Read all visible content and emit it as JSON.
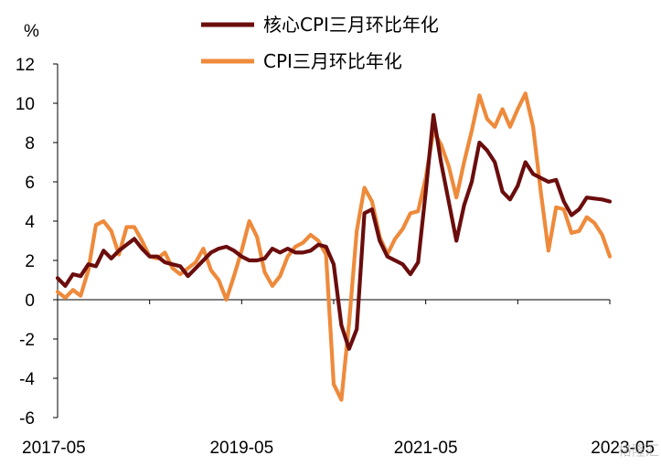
{
  "chart_data": {
    "type": "line",
    "ylabel": "%",
    "ylim": [
      -6,
      12
    ],
    "yticks": [
      -6,
      -4,
      -2,
      0,
      2,
      4,
      6,
      8,
      10,
      12
    ],
    "xlim": [
      "2017-05",
      "2023-05"
    ],
    "xticks": [
      "2017-05",
      "2019-05",
      "2021-05",
      "2023-05"
    ],
    "grid": false,
    "legend_position": "top",
    "series": [
      {
        "name": "核心CPI三月环比年化",
        "color": "#6b0d0d",
        "x": [
          "2017-05",
          "2017-06",
          "2017-07",
          "2017-08",
          "2017-09",
          "2017-10",
          "2017-11",
          "2017-12",
          "2018-01",
          "2018-02",
          "2018-03",
          "2018-04",
          "2018-05",
          "2018-06",
          "2018-07",
          "2018-08",
          "2018-09",
          "2018-10",
          "2018-11",
          "2018-12",
          "2019-01",
          "2019-02",
          "2019-03",
          "2019-04",
          "2019-05",
          "2019-06",
          "2019-07",
          "2019-08",
          "2019-09",
          "2019-10",
          "2019-11",
          "2019-12",
          "2020-01",
          "2020-02",
          "2020-03",
          "2020-04",
          "2020-05",
          "2020-06",
          "2020-07",
          "2020-08",
          "2020-09",
          "2020-10",
          "2020-11",
          "2020-12",
          "2021-01",
          "2021-02",
          "2021-03",
          "2021-04",
          "2021-05",
          "2021-06",
          "2021-07",
          "2021-08",
          "2021-09",
          "2021-10",
          "2021-11",
          "2021-12",
          "2022-01",
          "2022-02",
          "2022-03",
          "2022-04",
          "2022-05",
          "2022-06",
          "2022-07",
          "2022-08",
          "2022-09",
          "2022-10",
          "2022-11",
          "2022-12",
          "2023-01",
          "2023-02",
          "2023-03",
          "2023-04",
          "2023-05"
        ],
        "values": [
          1.1,
          0.7,
          1.3,
          1.2,
          1.8,
          1.7,
          2.5,
          2.1,
          2.5,
          2.8,
          3.1,
          2.6,
          2.2,
          2.2,
          1.9,
          1.8,
          1.7,
          1.2,
          1.6,
          2.0,
          2.4,
          2.6,
          2.7,
          2.5,
          2.2,
          2.0,
          2.0,
          2.1,
          2.6,
          2.4,
          2.6,
          2.4,
          2.4,
          2.5,
          2.8,
          2.7,
          1.8,
          -1.3,
          -2.5,
          -1.5,
          4.4,
          4.6,
          3.0,
          2.2,
          2.0,
          1.8,
          1.3,
          1.9,
          5.5,
          9.4,
          7.0,
          5.0,
          3.0,
          4.8,
          6.0,
          8.0,
          7.6,
          7.0,
          5.5,
          5.1,
          5.8,
          7.0,
          6.4,
          6.2,
          6.0,
          6.1,
          5.0,
          4.3,
          4.6,
          5.2,
          5.15,
          5.1,
          5.0
        ]
      },
      {
        "name": "CPI三月环比年化",
        "color": "#ee8a3b",
        "x": [
          "2017-05",
          "2017-06",
          "2017-07",
          "2017-08",
          "2017-09",
          "2017-10",
          "2017-11",
          "2017-12",
          "2018-01",
          "2018-02",
          "2018-03",
          "2018-04",
          "2018-05",
          "2018-06",
          "2018-07",
          "2018-08",
          "2018-09",
          "2018-10",
          "2018-11",
          "2018-12",
          "2019-01",
          "2019-02",
          "2019-03",
          "2019-04",
          "2019-05",
          "2019-06",
          "2019-07",
          "2019-08",
          "2019-09",
          "2019-10",
          "2019-11",
          "2019-12",
          "2020-01",
          "2020-02",
          "2020-03",
          "2020-04",
          "2020-05",
          "2020-06",
          "2020-07",
          "2020-08",
          "2020-09",
          "2020-10",
          "2020-11",
          "2020-12",
          "2021-01",
          "2021-02",
          "2021-03",
          "2021-04",
          "2021-05",
          "2021-06",
          "2021-07",
          "2021-08",
          "2021-09",
          "2021-10",
          "2021-11",
          "2021-12",
          "2022-01",
          "2022-02",
          "2022-03",
          "2022-04",
          "2022-05",
          "2022-06",
          "2022-07",
          "2022-08",
          "2022-09",
          "2022-10",
          "2022-11",
          "2022-12",
          "2023-01",
          "2023-02",
          "2023-03",
          "2023-04",
          "2023-05"
        ],
        "values": [
          0.4,
          0.1,
          0.5,
          0.2,
          1.5,
          3.8,
          4.0,
          3.5,
          2.3,
          3.7,
          3.7,
          3.0,
          2.2,
          2.1,
          2.4,
          1.6,
          1.3,
          1.6,
          1.9,
          2.6,
          1.5,
          1.0,
          0.0,
          1.2,
          2.5,
          4.0,
          3.2,
          1.4,
          0.7,
          1.2,
          2.2,
          2.7,
          2.9,
          3.3,
          3.0,
          2.3,
          -4.3,
          -5.1,
          -1.2,
          3.5,
          5.7,
          5.0,
          3.2,
          2.3,
          3.1,
          3.6,
          4.4,
          4.5,
          6.2,
          8.6,
          7.9,
          6.8,
          5.2,
          7.0,
          8.6,
          10.4,
          9.2,
          8.8,
          9.7,
          8.8,
          9.7,
          10.5,
          8.8,
          5.5,
          2.5,
          4.7,
          4.6,
          3.4,
          3.5,
          4.2,
          3.9,
          3.3,
          2.2
        ]
      }
    ]
  },
  "watermark": "格隆汇"
}
